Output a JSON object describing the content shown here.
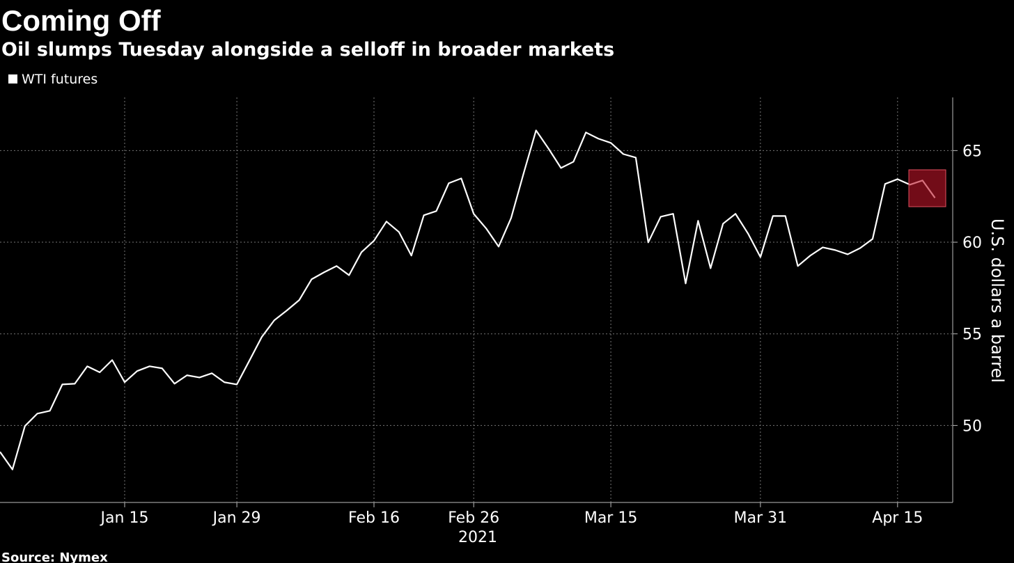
{
  "chart_data": {
    "type": "line",
    "title": "Coming Off",
    "subtitle": "Oil slumps Tuesday alongside a selloff in broader markets",
    "source": "Source: Nymex",
    "y_axis_label": "U.S. dollars a barrel",
    "x_year_label": "2021",
    "categories": [
      null,
      null,
      null,
      null,
      null,
      null,
      null,
      null,
      null,
      null,
      "Jan 15",
      null,
      null,
      null,
      null,
      null,
      null,
      null,
      null,
      "Jan 29",
      null,
      null,
      null,
      null,
      null,
      null,
      null,
      null,
      null,
      null,
      "Feb 16",
      null,
      null,
      null,
      null,
      null,
      null,
      null,
      "Feb 26",
      null,
      null,
      null,
      null,
      null,
      null,
      null,
      null,
      null,
      null,
      "Mar 15",
      null,
      null,
      null,
      null,
      null,
      null,
      null,
      null,
      null,
      null,
      null,
      "Mar 31",
      null,
      null,
      null,
      null,
      null,
      null,
      null,
      null,
      null,
      null,
      "Apr 15",
      null,
      null,
      null
    ],
    "series": [
      {
        "name": "WTI futures",
        "color": "#ffffff",
        "values": [
          48.56,
          47.6,
          49.97,
          50.65,
          50.8,
          52.24,
          52.28,
          53.23,
          52.9,
          53.57,
          52.36,
          52.97,
          53.23,
          53.12,
          52.28,
          52.74,
          52.62,
          52.85,
          52.36,
          52.24,
          53.53,
          54.83,
          55.74,
          56.27,
          56.84,
          57.98,
          58.36,
          58.7,
          58.2,
          59.46,
          60.08,
          61.13,
          60.56,
          59.27,
          61.47,
          61.7,
          63.22,
          63.48,
          61.55,
          60.75,
          59.76,
          61.32,
          63.75,
          66.1,
          65.11,
          64.05,
          64.39,
          65.99,
          65.65,
          65.42,
          64.81,
          64.62,
          59.99,
          61.39,
          61.55,
          57.75,
          61.17,
          58.58,
          61.01,
          61.55,
          60.48,
          59.19,
          61.43,
          61.43,
          58.7,
          59.27,
          59.72,
          59.57,
          59.34,
          59.68,
          60.18,
          63.18,
          63.44,
          63.14,
          63.37,
          62.42
        ]
      }
    ],
    "ylim": [
      45.8,
      67.9
    ],
    "yticks": [
      50,
      55,
      60,
      65
    ],
    "grid": true,
    "legend": "top-left"
  }
}
